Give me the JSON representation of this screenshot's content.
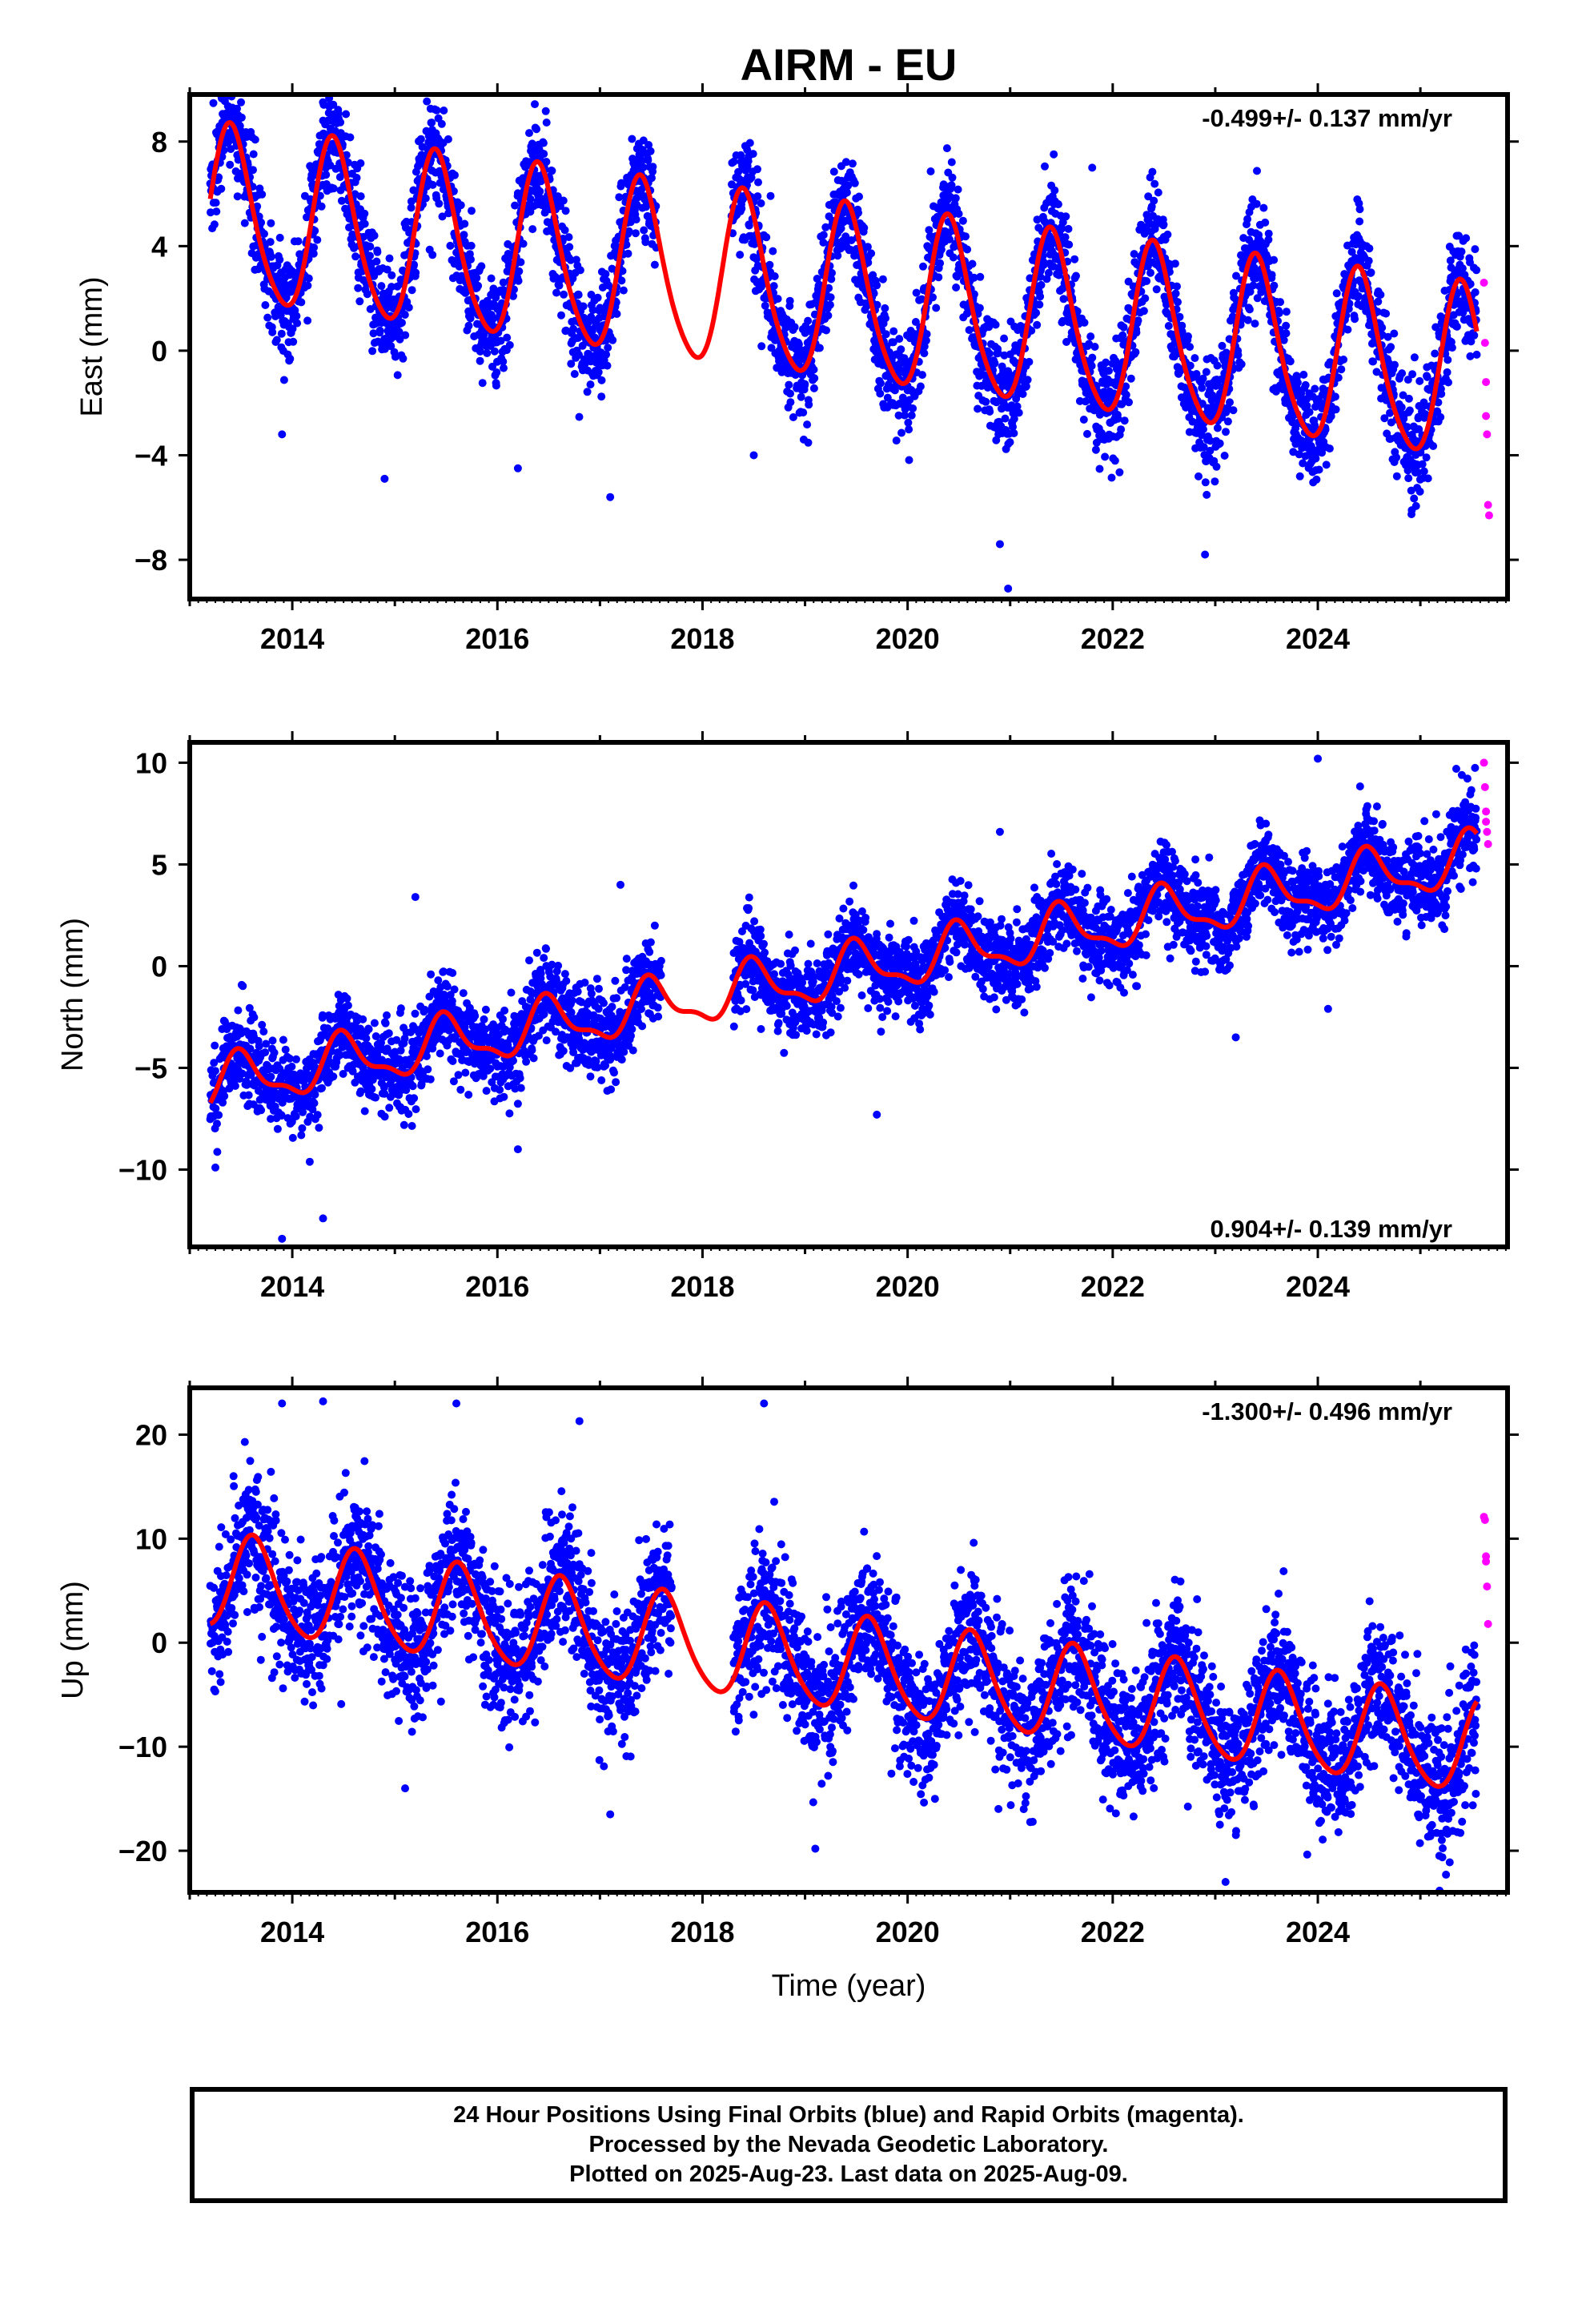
{
  "title": "AIRM - EU",
  "caption": {
    "line1": "24 Hour Positions Using Final Orbits (blue) and Rapid Orbits (magenta).",
    "line2": "Processed by the Nevada Geodetic Laboratory.",
    "line3": "Plotted on 2025-Aug-23. Last data on 2025-Aug-09."
  },
  "colors": {
    "final_orbits": "#0000ff",
    "rapid_orbits": "#ff00ff",
    "model_fit": "#ff0000"
  },
  "chart_data": [
    {
      "type": "scatter",
      "id": "east",
      "ylabel": "East (mm)",
      "xlabel": "",
      "xlim": [
        2013.0,
        2025.85
      ],
      "ylim": [
        -9.5,
        9.8
      ],
      "xticks": [
        2014,
        2016,
        2018,
        2020,
        2022,
        2024
      ],
      "yticks": [
        8,
        4,
        0,
        -4,
        -8
      ],
      "ytick_labels": [
        "8",
        "4",
        "0",
        "−4",
        "−8"
      ],
      "rate_text": "-0.499+/- 0.137 mm/yr",
      "rate_position": "top-right",
      "fit": {
        "offset": 2.0,
        "slope": -0.499,
        "ref_year": 2019.5,
        "annual_amp": 3.3,
        "annual_phase_year": 2013.41,
        "semi_amp": 0.45
      },
      "scatter_sd": 1.05,
      "data_start": 2013.2,
      "data_end": 2025.55,
      "gaps": [
        [
          2017.55,
          2018.28
        ]
      ],
      "outliers": [
        [
          2013.5,
          9.5
        ],
        [
          2014.3,
          8.8
        ],
        [
          2021.8,
          7.0
        ],
        [
          2013.9,
          -3.2
        ],
        [
          2014.9,
          -4.9
        ],
        [
          2016.2,
          -4.5
        ],
        [
          2017.1,
          -5.6
        ],
        [
          2018.5,
          -4.0
        ],
        [
          2020.9,
          -7.4
        ],
        [
          2020.98,
          -9.1
        ],
        [
          2022.9,
          -7.8
        ]
      ],
      "rapid_points": [
        [
          2025.62,
          2.6
        ],
        [
          2025.63,
          0.3
        ],
        [
          2025.64,
          -1.2
        ],
        [
          2025.64,
          -2.5
        ],
        [
          2025.65,
          -3.2
        ],
        [
          2025.66,
          -5.9
        ],
        [
          2025.67,
          -6.3
        ]
      ]
    },
    {
      "type": "scatter",
      "id": "north",
      "ylabel": "North (mm)",
      "xlabel": "",
      "xlim": [
        2013.0,
        2025.85
      ],
      "ylim": [
        -13.8,
        11.0
      ],
      "xticks": [
        2014,
        2016,
        2018,
        2020,
        2022,
        2024
      ],
      "yticks": [
        10,
        5,
        0,
        -5,
        -10
      ],
      "ytick_labels": [
        "10",
        "5",
        "0",
        "−5",
        "−10"
      ],
      "rate_text": "0.904+/- 0.139 mm/yr",
      "rate_position": "bottom-right",
      "fit": {
        "offset": -0.2,
        "slope": 0.904,
        "ref_year": 2019.5,
        "annual_amp": 1.2,
        "annual_phase_year": 2013.5,
        "semi_amp": 0.45
      },
      "scatter_sd": 1.05,
      "data_start": 2013.2,
      "data_end": 2025.55,
      "gaps": [
        [
          2017.6,
          2018.3
        ]
      ],
      "outliers": [
        [
          2013.9,
          -13.4
        ],
        [
          2014.3,
          -12.4
        ],
        [
          2013.25,
          -9.9
        ],
        [
          2015.2,
          3.4
        ],
        [
          2016.2,
          -9.0
        ],
        [
          2017.2,
          4.0
        ],
        [
          2019.7,
          -7.3
        ],
        [
          2020.9,
          6.6
        ],
        [
          2023.2,
          -3.5
        ],
        [
          2024.0,
          10.2
        ],
        [
          2024.1,
          -2.1
        ],
        [
          2025.35,
          9.7
        ]
      ],
      "rapid_points": [
        [
          2025.62,
          10.0
        ],
        [
          2025.63,
          8.8
        ],
        [
          2025.64,
          7.6
        ],
        [
          2025.64,
          7.1
        ],
        [
          2025.65,
          6.6
        ],
        [
          2025.66,
          6.0
        ]
      ]
    },
    {
      "type": "scatter",
      "id": "up",
      "ylabel": "Up (mm)",
      "xlabel": "Time (year)",
      "xlim": [
        2013.0,
        2025.85
      ],
      "ylim": [
        -24.0,
        24.5
      ],
      "xticks": [
        2014,
        2016,
        2018,
        2020,
        2022,
        2024
      ],
      "yticks": [
        20,
        10,
        0,
        -10,
        -20
      ],
      "ytick_labels": [
        "20",
        "10",
        "0",
        "−10",
        "−20"
      ],
      "rate_text": "-1.300+/- 0.496 mm/yr",
      "rate_position": "top-right",
      "fit": {
        "offset": -2.3,
        "slope": -1.3,
        "ref_year": 2019.5,
        "annual_amp": 4.5,
        "annual_phase_year": 2013.63,
        "semi_amp": 0.6
      },
      "scatter_sd": 3.3,
      "data_start": 2013.2,
      "data_end": 2025.55,
      "gaps": [
        [
          2017.7,
          2018.3
        ]
      ],
      "outliers": [
        [
          2013.9,
          23.0
        ],
        [
          2014.3,
          23.2
        ],
        [
          2015.6,
          23.0
        ],
        [
          2016.8,
          21.3
        ],
        [
          2018.6,
          23.0
        ],
        [
          2015.1,
          -14.0
        ],
        [
          2017.1,
          -16.5
        ],
        [
          2019.1,
          -19.8
        ],
        [
          2023.1,
          -23.0
        ],
        [
          2025.25,
          -22.3
        ]
      ],
      "rapid_points": [
        [
          2025.62,
          12.1
        ],
        [
          2025.63,
          11.8
        ],
        [
          2025.64,
          8.3
        ],
        [
          2025.64,
          7.8
        ],
        [
          2025.65,
          5.4
        ],
        [
          2025.66,
          1.8
        ]
      ]
    }
  ]
}
